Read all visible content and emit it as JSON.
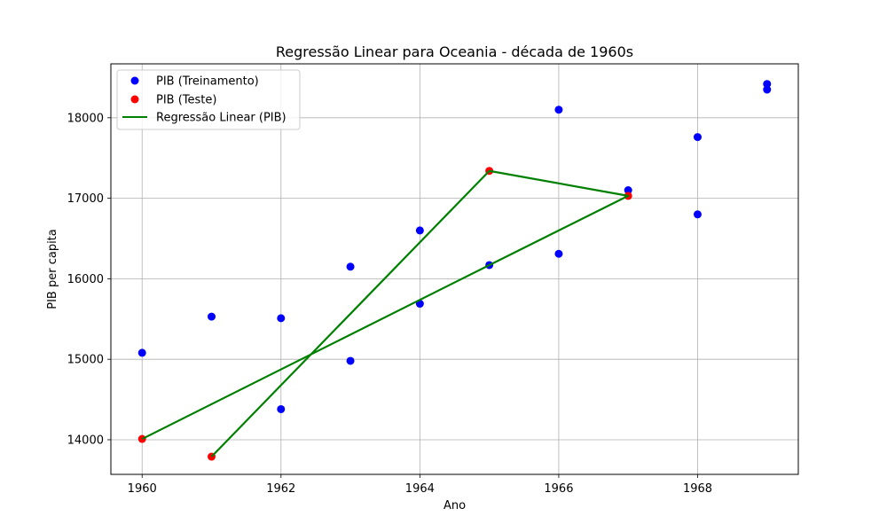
{
  "chart_data": {
    "type": "scatter",
    "title": "Regressão Linear para Oceania - década de 1960s",
    "xlabel": "Ano",
    "ylabel": "PIB per capita",
    "xlim": [
      1959.55,
      1969.45
    ],
    "ylim": [
      13570,
      18670
    ],
    "xticks": [
      1960,
      1962,
      1964,
      1966,
      1968
    ],
    "yticks": [
      14000,
      15000,
      16000,
      17000,
      18000
    ],
    "grid": true,
    "legend_position": "top-left",
    "series": [
      {
        "name": "PIB (Treinamento)",
        "kind": "scatter",
        "color": "#0000ff",
        "points": [
          {
            "x": 1960,
            "y": 15080
          },
          {
            "x": 1961,
            "y": 15530
          },
          {
            "x": 1962,
            "y": 15510
          },
          {
            "x": 1962,
            "y": 14380
          },
          {
            "x": 1963,
            "y": 16150
          },
          {
            "x": 1963,
            "y": 14980
          },
          {
            "x": 1964,
            "y": 16600
          },
          {
            "x": 1964,
            "y": 15690
          },
          {
            "x": 1965,
            "y": 16170
          },
          {
            "x": 1966,
            "y": 18100
          },
          {
            "x": 1966,
            "y": 16310
          },
          {
            "x": 1967,
            "y": 17100
          },
          {
            "x": 1968,
            "y": 17760
          },
          {
            "x": 1968,
            "y": 16800
          },
          {
            "x": 1969,
            "y": 18420
          },
          {
            "x": 1969,
            "y": 18350
          }
        ]
      },
      {
        "name": "PIB (Teste)",
        "kind": "scatter",
        "color": "#ff0000",
        "points": [
          {
            "x": 1960,
            "y": 14010
          },
          {
            "x": 1961,
            "y": 13790
          },
          {
            "x": 1965,
            "y": 17340
          },
          {
            "x": 1967,
            "y": 17030
          }
        ]
      },
      {
        "name": "Regressão Linear (PIB)",
        "kind": "line",
        "color": "#008000",
        "points": [
          {
            "x": 1960,
            "y": 14010
          },
          {
            "x": 1965,
            "y": 16170
          },
          {
            "x": 1967,
            "y": 17030
          },
          {
            "x": 1965,
            "y": 17340
          },
          {
            "x": 1961,
            "y": 13790
          }
        ]
      }
    ]
  }
}
